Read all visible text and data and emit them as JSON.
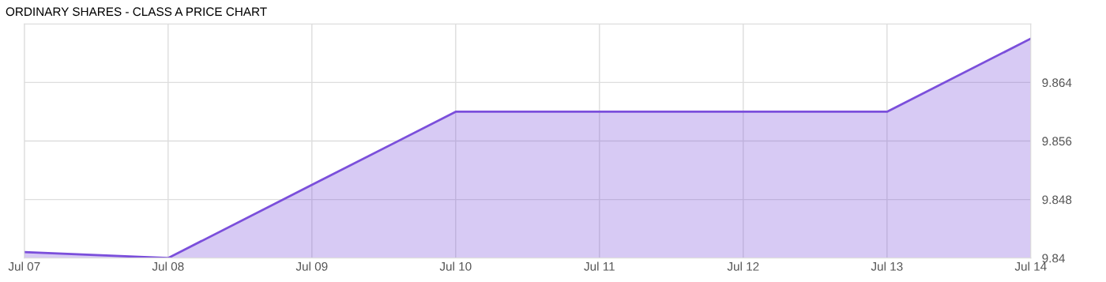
{
  "chart_data": {
    "type": "area",
    "title": "ORDINARY SHARES - CLASS A PRICE CHART",
    "categories": [
      "Jul 07",
      "Jul 08",
      "Jul 09",
      "Jul 10",
      "Jul 11",
      "Jul 12",
      "Jul 13",
      "Jul 14"
    ],
    "series": [
      {
        "color": "#7b4fdb",
        "values": [
          9.8408,
          9.84,
          9.85,
          9.86,
          9.86,
          9.86,
          9.86,
          9.87
        ]
      }
    ],
    "ylim": [
      9.84,
      9.872
    ],
    "yticks": [
      9.84,
      9.848,
      9.856,
      9.864
    ],
    "grid": true
  }
}
